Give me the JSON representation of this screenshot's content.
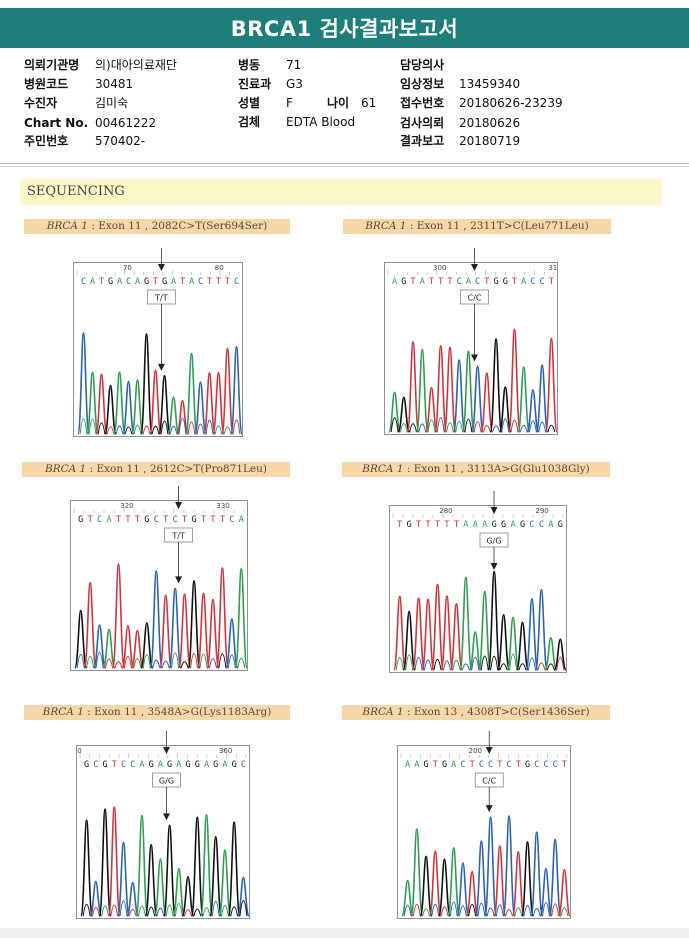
{
  "title": "BRCA1 검사결과보고서",
  "patient_info": {
    "col1": [
      {
        "label": "의뢰기관명",
        "value": "의)대아의료재단"
      },
      {
        "label": "병원코드",
        "value": "30481"
      },
      {
        "label": "수진자",
        "value": "김미숙"
      },
      {
        "label": "Chart No.",
        "value": "00461222"
      },
      {
        "label": "주민번호",
        "value": "570402-"
      }
    ],
    "col2": [
      {
        "label": "병동",
        "value": "71"
      },
      {
        "label": "진료과",
        "value": "G3"
      },
      {
        "label": "성별",
        "value": "F"
      },
      {
        "label": "검체",
        "value": "EDTA Blood"
      }
    ],
    "age": {
      "label": "나이",
      "value": "61"
    },
    "col3": [
      {
        "label": "담당의사",
        "value": ""
      },
      {
        "label": "임상정보",
        "value": "13459340"
      },
      {
        "label": "접수번호",
        "value": "20180626-23239"
      },
      {
        "label": "검사의뢰",
        "value": "20180626"
      },
      {
        "label": "결과보고",
        "value": "20180719"
      }
    ]
  },
  "section_title": "SEQUENCING",
  "colors": {
    "title_bg": "#1e7f7a",
    "label_bg": "#f6d7a8",
    "section_bg": "#fbf7c6",
    "A": "#2e9e52",
    "C": "#2b62b5",
    "G": "#111111",
    "T": "#d2343c"
  },
  "variants": [
    {
      "gene": "BRCA 1",
      "desc": " : Exon 11 , 2082C>T(Ser694Ser)",
      "ruler": [
        "70",
        "80"
      ],
      "sequence": "CATGACAGTGATACTTTC",
      "call": "T/T"
    },
    {
      "gene": "BRCA 1",
      "desc": " : Exon 11 , 2311T>C(Leu771Leu)",
      "ruler": [
        "300",
        "31"
      ],
      "sequence": "AGTATTTCACTGGTACCT",
      "call": "C/C"
    },
    {
      "gene": "BRCA 1",
      "desc": " : Exon 11 , 2612C>T(Pro871Leu)",
      "ruler": [
        "320",
        "330"
      ],
      "sequence": "GTCATTTGCTCTGTTTCA",
      "call": "T/T"
    },
    {
      "gene": "BRCA 1",
      "desc": " : Exon 11 , 3113A>G(Glu1038Gly)",
      "ruler": [
        "280",
        "290"
      ],
      "sequence": "TGTTTTTAAAGGAGCCAG",
      "call": "G/G"
    },
    {
      "gene": "BRCA 1",
      "desc": " : Exon 11 , 3548A>G(Lys1183Arg)",
      "ruler": [
        "0",
        "360"
      ],
      "sequence": "GCGTCCAGAGAGGAGAGC",
      "call": "G/G"
    },
    {
      "gene": "BRCA 1",
      "desc": " : Exon 13 , 4308T>C(Ser1436Ser)",
      "ruler": [
        "200"
      ],
      "sequence": "AAGTGACTCCTCTGCCCT",
      "call": "C/C"
    }
  ]
}
